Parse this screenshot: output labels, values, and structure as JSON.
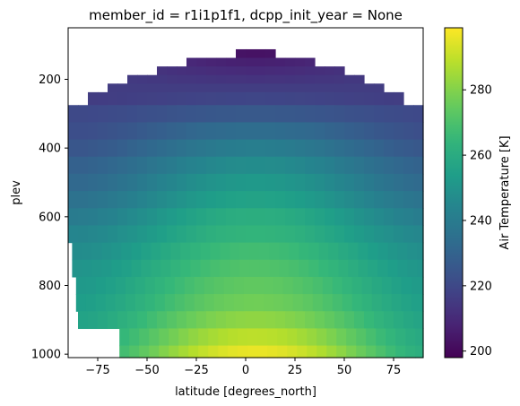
{
  "chart_data": {
    "type": "heatmap",
    "title": "member_id = r1i1p1f1, dcpp_init_year = None",
    "xlabel": "latitude [degrees_north]",
    "ylabel": "plev",
    "xlim": [
      -90,
      90
    ],
    "ylim": [
      1010,
      50
    ],
    "y_inverted": true,
    "xticks": [
      -75,
      -50,
      -25,
      0,
      25,
      50,
      75
    ],
    "yticks": [
      200,
      400,
      600,
      800,
      1000
    ],
    "colorbar": {
      "label": "Air Temperature [K]",
      "range": [
        198,
        299
      ],
      "ticks": [
        200,
        220,
        240,
        260,
        280
      ],
      "colormap": "viridis"
    },
    "levels_hPa": [
      125,
      150,
      175,
      200,
      225,
      250,
      300,
      350,
      400,
      450,
      500,
      550,
      600,
      650,
      700,
      750,
      800,
      850,
      900,
      950,
      1000
    ],
    "valid_latitude_range_by_level": [
      [
        -5,
        15
      ],
      [
        -30,
        35
      ],
      [
        -45,
        50
      ],
      [
        -60,
        60
      ],
      [
        -70,
        70
      ],
      [
        -80,
        80
      ],
      [
        -90,
        90
      ],
      [
        -90,
        90
      ],
      [
        -90,
        90
      ],
      [
        -90,
        90
      ],
      [
        -90,
        90
      ],
      [
        -90,
        90
      ],
      [
        -90,
        90
      ],
      [
        -90,
        90
      ],
      [
        -88,
        90
      ],
      [
        -88,
        90
      ],
      [
        -86,
        90
      ],
      [
        -86,
        90
      ],
      [
        -85,
        90
      ],
      [
        -64,
        90
      ],
      [
        -64,
        90
      ]
    ],
    "profile_equator_K": [
      203,
      207,
      210,
      213,
      216,
      219,
      226,
      234,
      241,
      247,
      252,
      256,
      261,
      264,
      268,
      271,
      274,
      277,
      282,
      289,
      296
    ],
    "profile_pole_K": [
      215,
      216,
      216,
      216,
      216,
      216,
      220,
      222,
      225,
      229,
      232,
      236,
      240,
      244,
      247,
      250,
      252,
      254,
      256,
      258,
      260
    ]
  }
}
